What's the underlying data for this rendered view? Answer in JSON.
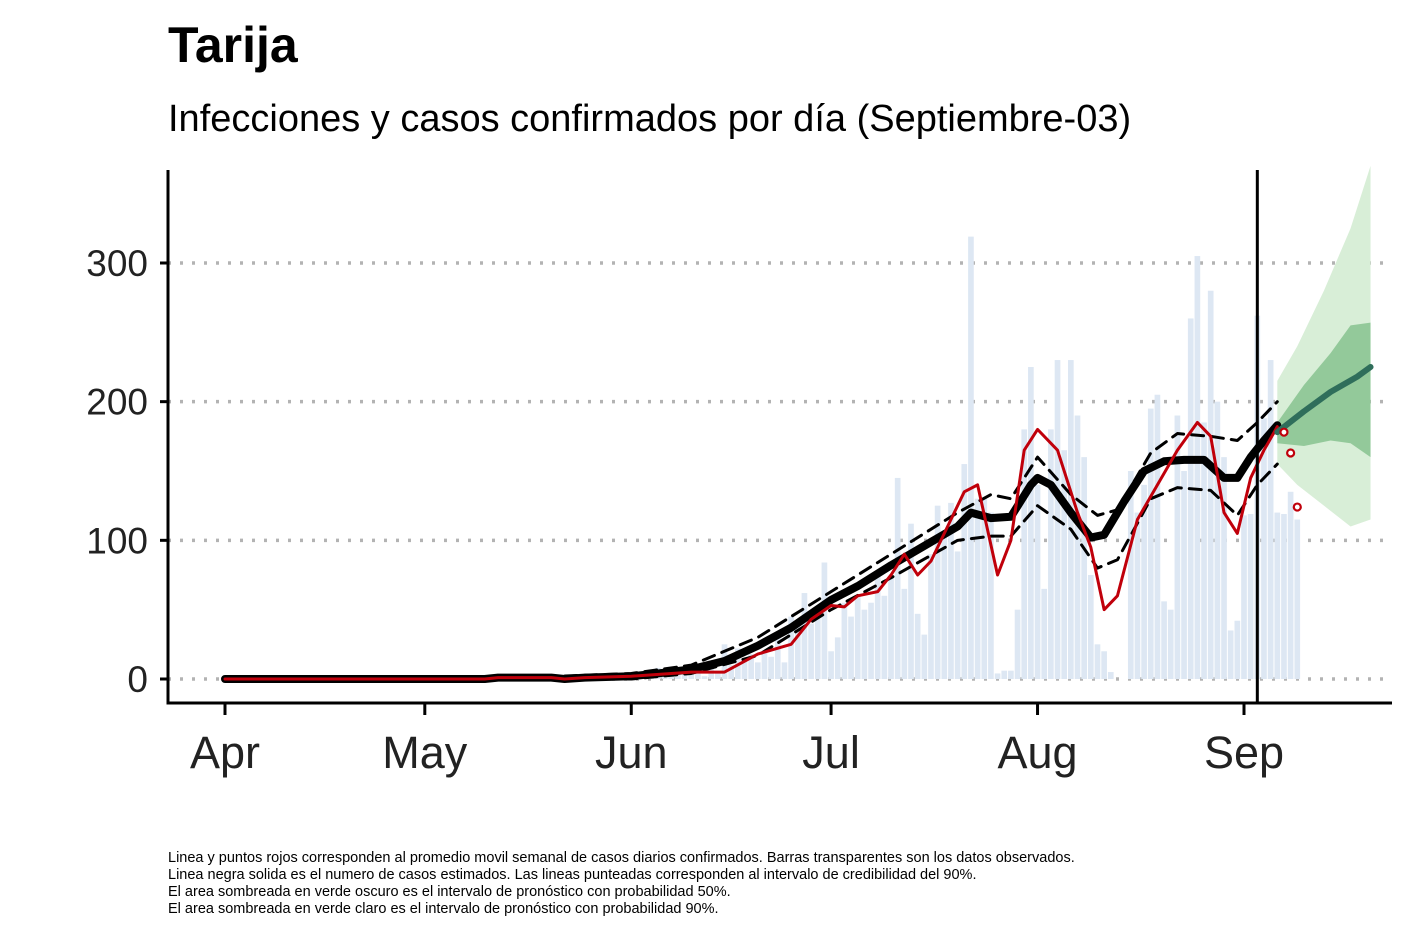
{
  "chart_data": {
    "type": "bar",
    "title": "Tarija",
    "subtitle": "Infecciones y casos confirmados por día (Septiembre-03)",
    "xlabel": "",
    "ylabel": "",
    "x_ticks": [
      "Apr",
      "May",
      "Jun",
      "Jul",
      "Aug",
      "Sep"
    ],
    "x_tick_dates": [
      "2020-04-01",
      "2020-05-01",
      "2020-06-01",
      "2020-07-01",
      "2020-08-01",
      "2020-09-01"
    ],
    "y_ticks": [
      0,
      100,
      200,
      300
    ],
    "ylim": [
      0,
      360
    ],
    "grid": "horizontal dotted",
    "cutoff_date": "2020-09-03",
    "colors": {
      "bars": "#dde7f3",
      "estimate": "#000000",
      "confirmed_avg": "#c0000b",
      "forecast_line": "#2f6e5b",
      "forecast_50": "#93c99a",
      "forecast_90": "#d8eed7",
      "grid": "#b3b3b3"
    },
    "observed_bars": [
      {
        "date": "2020-06-01",
        "value": 3
      },
      {
        "date": "2020-06-02",
        "value": 1
      },
      {
        "date": "2020-06-03",
        "value": 5
      },
      {
        "date": "2020-06-04",
        "value": 2
      },
      {
        "date": "2020-06-05",
        "value": 8
      },
      {
        "date": "2020-06-06",
        "value": 4
      },
      {
        "date": "2020-06-07",
        "value": 2
      },
      {
        "date": "2020-06-08",
        "value": 6
      },
      {
        "date": "2020-06-09",
        "value": 3
      },
      {
        "date": "2020-06-10",
        "value": 5
      },
      {
        "date": "2020-06-11",
        "value": 7
      },
      {
        "date": "2020-06-12",
        "value": 2
      },
      {
        "date": "2020-06-13",
        "value": 9
      },
      {
        "date": "2020-06-14",
        "value": 4
      },
      {
        "date": "2020-06-15",
        "value": 25
      },
      {
        "date": "2020-06-16",
        "value": 10
      },
      {
        "date": "2020-06-17",
        "value": 22
      },
      {
        "date": "2020-06-18",
        "value": 15
      },
      {
        "date": "2020-06-19",
        "value": 18
      },
      {
        "date": "2020-06-20",
        "value": 12
      },
      {
        "date": "2020-06-21",
        "value": 20
      },
      {
        "date": "2020-06-22",
        "value": 16
      },
      {
        "date": "2020-06-23",
        "value": 30
      },
      {
        "date": "2020-06-24",
        "value": 12
      },
      {
        "date": "2020-06-25",
        "value": 45
      },
      {
        "date": "2020-06-26",
        "value": 38
      },
      {
        "date": "2020-06-27",
        "value": 62
      },
      {
        "date": "2020-06-28",
        "value": 40
      },
      {
        "date": "2020-06-29",
        "value": 45
      },
      {
        "date": "2020-06-30",
        "value": 84
      },
      {
        "date": "2020-07-01",
        "value": 20
      },
      {
        "date": "2020-07-02",
        "value": 30
      },
      {
        "date": "2020-07-03",
        "value": 55
      },
      {
        "date": "2020-07-04",
        "value": 45
      },
      {
        "date": "2020-07-05",
        "value": 60
      },
      {
        "date": "2020-07-06",
        "value": 50
      },
      {
        "date": "2020-07-07",
        "value": 55
      },
      {
        "date": "2020-07-08",
        "value": 75
      },
      {
        "date": "2020-07-09",
        "value": 60
      },
      {
        "date": "2020-07-10",
        "value": 73
      },
      {
        "date": "2020-07-11",
        "value": 145
      },
      {
        "date": "2020-07-12",
        "value": 65
      },
      {
        "date": "2020-07-13",
        "value": 112
      },
      {
        "date": "2020-07-14",
        "value": 47
      },
      {
        "date": "2020-07-15",
        "value": 32
      },
      {
        "date": "2020-07-16",
        "value": 90
      },
      {
        "date": "2020-07-17",
        "value": 125
      },
      {
        "date": "2020-07-18",
        "value": 104
      },
      {
        "date": "2020-07-19",
        "value": 127
      },
      {
        "date": "2020-07-20",
        "value": 92
      },
      {
        "date": "2020-07-21",
        "value": 155
      },
      {
        "date": "2020-07-22",
        "value": 319
      },
      {
        "date": "2020-07-23",
        "value": 130
      },
      {
        "date": "2020-07-24",
        "value": 130
      },
      {
        "date": "2020-07-25",
        "value": 120
      },
      {
        "date": "2020-07-26",
        "value": 4
      },
      {
        "date": "2020-07-27",
        "value": 6
      },
      {
        "date": "2020-07-28",
        "value": 6
      },
      {
        "date": "2020-07-29",
        "value": 50
      },
      {
        "date": "2020-07-30",
        "value": 180
      },
      {
        "date": "2020-07-31",
        "value": 225
      },
      {
        "date": "2020-08-01",
        "value": 140
      },
      {
        "date": "2020-08-02",
        "value": 65
      },
      {
        "date": "2020-08-03",
        "value": 180
      },
      {
        "date": "2020-08-04",
        "value": 230
      },
      {
        "date": "2020-08-05",
        "value": 165
      },
      {
        "date": "2020-08-06",
        "value": 230
      },
      {
        "date": "2020-08-07",
        "value": 190
      },
      {
        "date": "2020-08-08",
        "value": 160
      },
      {
        "date": "2020-08-09",
        "value": 75
      },
      {
        "date": "2020-08-10",
        "value": 25
      },
      {
        "date": "2020-08-11",
        "value": 20
      },
      {
        "date": "2020-08-12",
        "value": 5
      },
      {
        "date": "2020-08-13",
        "value": 0
      },
      {
        "date": "2020-08-14",
        "value": 0
      },
      {
        "date": "2020-08-15",
        "value": 150
      },
      {
        "date": "2020-08-16",
        "value": 120
      },
      {
        "date": "2020-08-17",
        "value": 140
      },
      {
        "date": "2020-08-18",
        "value": 195
      },
      {
        "date": "2020-08-19",
        "value": 205
      },
      {
        "date": "2020-08-20",
        "value": 56
      },
      {
        "date": "2020-08-21",
        "value": 50
      },
      {
        "date": "2020-08-22",
        "value": 190
      },
      {
        "date": "2020-08-23",
        "value": 150
      },
      {
        "date": "2020-08-24",
        "value": 260
      },
      {
        "date": "2020-08-25",
        "value": 305
      },
      {
        "date": "2020-08-26",
        "value": 185
      },
      {
        "date": "2020-08-27",
        "value": 280
      },
      {
        "date": "2020-08-28",
        "value": 200
      },
      {
        "date": "2020-08-29",
        "value": 160
      },
      {
        "date": "2020-08-30",
        "value": 35
      },
      {
        "date": "2020-08-31",
        "value": 42
      },
      {
        "date": "2020-09-01",
        "value": 118
      },
      {
        "date": "2020-09-02",
        "value": 119
      },
      {
        "date": "2020-09-03",
        "value": 262
      },
      {
        "date": "2020-09-04",
        "value": 188
      },
      {
        "date": "2020-09-05",
        "value": 230
      },
      {
        "date": "2020-09-06",
        "value": 120
      },
      {
        "date": "2020-09-07",
        "value": 119
      },
      {
        "date": "2020-09-08",
        "value": 135
      },
      {
        "date": "2020-09-09",
        "value": 115
      }
    ],
    "estimated_infections": [
      {
        "date": "2020-04-01",
        "value": 0
      },
      {
        "date": "2020-05-01",
        "value": 0
      },
      {
        "date": "2020-05-10",
        "value": 0
      },
      {
        "date": "2020-05-12",
        "value": 1
      },
      {
        "date": "2020-05-20",
        "value": 1
      },
      {
        "date": "2020-05-22",
        "value": 0
      },
      {
        "date": "2020-05-25",
        "value": 1
      },
      {
        "date": "2020-06-01",
        "value": 2
      },
      {
        "date": "2020-06-05",
        "value": 4
      },
      {
        "date": "2020-06-10",
        "value": 7
      },
      {
        "date": "2020-06-15",
        "value": 13
      },
      {
        "date": "2020-06-20",
        "value": 24
      },
      {
        "date": "2020-06-25",
        "value": 37
      },
      {
        "date": "2020-07-01",
        "value": 57
      },
      {
        "date": "2020-07-05",
        "value": 67
      },
      {
        "date": "2020-07-10",
        "value": 82
      },
      {
        "date": "2020-07-15",
        "value": 96
      },
      {
        "date": "2020-07-20",
        "value": 110
      },
      {
        "date": "2020-07-22",
        "value": 120
      },
      {
        "date": "2020-07-25",
        "value": 116
      },
      {
        "date": "2020-07-28",
        "value": 117
      },
      {
        "date": "2020-07-31",
        "value": 140
      },
      {
        "date": "2020-08-01",
        "value": 145
      },
      {
        "date": "2020-08-03",
        "value": 140
      },
      {
        "date": "2020-08-06",
        "value": 120
      },
      {
        "date": "2020-08-09",
        "value": 102
      },
      {
        "date": "2020-08-11",
        "value": 104
      },
      {
        "date": "2020-08-14",
        "value": 128
      },
      {
        "date": "2020-08-17",
        "value": 150
      },
      {
        "date": "2020-08-20",
        "value": 157
      },
      {
        "date": "2020-08-23",
        "value": 158
      },
      {
        "date": "2020-08-26",
        "value": 158
      },
      {
        "date": "2020-08-29",
        "value": 145
      },
      {
        "date": "2020-08-31",
        "value": 145
      },
      {
        "date": "2020-09-02",
        "value": 160
      },
      {
        "date": "2020-09-04",
        "value": 172
      },
      {
        "date": "2020-09-06",
        "value": 183
      }
    ],
    "estimated_upper": [
      {
        "date": "2020-04-01",
        "value": 0
      },
      {
        "date": "2020-05-10",
        "value": 0
      },
      {
        "date": "2020-06-01",
        "value": 4
      },
      {
        "date": "2020-06-10",
        "value": 10
      },
      {
        "date": "2020-06-20",
        "value": 30
      },
      {
        "date": "2020-07-01",
        "value": 63
      },
      {
        "date": "2020-07-10",
        "value": 90
      },
      {
        "date": "2020-07-20",
        "value": 120
      },
      {
        "date": "2020-07-25",
        "value": 133
      },
      {
        "date": "2020-07-28",
        "value": 130
      },
      {
        "date": "2020-08-01",
        "value": 160
      },
      {
        "date": "2020-08-06",
        "value": 133
      },
      {
        "date": "2020-08-10",
        "value": 118
      },
      {
        "date": "2020-08-13",
        "value": 122
      },
      {
        "date": "2020-08-18",
        "value": 163
      },
      {
        "date": "2020-08-22",
        "value": 177
      },
      {
        "date": "2020-08-27",
        "value": 175
      },
      {
        "date": "2020-08-31",
        "value": 172
      },
      {
        "date": "2020-09-03",
        "value": 185
      },
      {
        "date": "2020-09-06",
        "value": 200
      }
    ],
    "estimated_lower": [
      {
        "date": "2020-04-01",
        "value": 0
      },
      {
        "date": "2020-05-10",
        "value": 0
      },
      {
        "date": "2020-06-01",
        "value": 0
      },
      {
        "date": "2020-06-10",
        "value": 4
      },
      {
        "date": "2020-06-20",
        "value": 17
      },
      {
        "date": "2020-07-01",
        "value": 50
      },
      {
        "date": "2020-07-10",
        "value": 73
      },
      {
        "date": "2020-07-20",
        "value": 100
      },
      {
        "date": "2020-07-25",
        "value": 103
      },
      {
        "date": "2020-07-28",
        "value": 103
      },
      {
        "date": "2020-08-01",
        "value": 125
      },
      {
        "date": "2020-08-06",
        "value": 108
      },
      {
        "date": "2020-08-10",
        "value": 80
      },
      {
        "date": "2020-08-13",
        "value": 86
      },
      {
        "date": "2020-08-18",
        "value": 130
      },
      {
        "date": "2020-08-22",
        "value": 138
      },
      {
        "date": "2020-08-27",
        "value": 136
      },
      {
        "date": "2020-08-31",
        "value": 118
      },
      {
        "date": "2020-09-03",
        "value": 140
      },
      {
        "date": "2020-09-06",
        "value": 155
      }
    ],
    "confirmed_weekly_avg": [
      {
        "date": "2020-04-01",
        "value": 0
      },
      {
        "date": "2020-05-10",
        "value": 0
      },
      {
        "date": "2020-05-12",
        "value": 1
      },
      {
        "date": "2020-05-20",
        "value": 1
      },
      {
        "date": "2020-05-22",
        "value": 0
      },
      {
        "date": "2020-05-25",
        "value": 1
      },
      {
        "date": "2020-06-01",
        "value": 2
      },
      {
        "date": "2020-06-10",
        "value": 5
      },
      {
        "date": "2020-06-15",
        "value": 5
      },
      {
        "date": "2020-06-20",
        "value": 18
      },
      {
        "date": "2020-06-25",
        "value": 25
      },
      {
        "date": "2020-06-28",
        "value": 43
      },
      {
        "date": "2020-07-01",
        "value": 53
      },
      {
        "date": "2020-07-03",
        "value": 52
      },
      {
        "date": "2020-07-05",
        "value": 60
      },
      {
        "date": "2020-07-08",
        "value": 63
      },
      {
        "date": "2020-07-10",
        "value": 75
      },
      {
        "date": "2020-07-12",
        "value": 90
      },
      {
        "date": "2020-07-14",
        "value": 75
      },
      {
        "date": "2020-07-16",
        "value": 85
      },
      {
        "date": "2020-07-19",
        "value": 115
      },
      {
        "date": "2020-07-21",
        "value": 135
      },
      {
        "date": "2020-07-23",
        "value": 140
      },
      {
        "date": "2020-07-26",
        "value": 75
      },
      {
        "date": "2020-07-28",
        "value": 100
      },
      {
        "date": "2020-07-30",
        "value": 165
      },
      {
        "date": "2020-08-01",
        "value": 180
      },
      {
        "date": "2020-08-04",
        "value": 165
      },
      {
        "date": "2020-08-07",
        "value": 120
      },
      {
        "date": "2020-08-09",
        "value": 95
      },
      {
        "date": "2020-08-11",
        "value": 50
      },
      {
        "date": "2020-08-13",
        "value": 60
      },
      {
        "date": "2020-08-16",
        "value": 115
      },
      {
        "date": "2020-08-19",
        "value": 140
      },
      {
        "date": "2020-08-22",
        "value": 165
      },
      {
        "date": "2020-08-25",
        "value": 185
      },
      {
        "date": "2020-08-27",
        "value": 175
      },
      {
        "date": "2020-08-29",
        "value": 120
      },
      {
        "date": "2020-08-31",
        "value": 105
      },
      {
        "date": "2020-09-02",
        "value": 145
      },
      {
        "date": "2020-09-04",
        "value": 165
      },
      {
        "date": "2020-09-06",
        "value": 182
      }
    ],
    "confirmed_points": [
      {
        "date": "2020-09-07",
        "value": 178
      },
      {
        "date": "2020-09-08",
        "value": 163
      },
      {
        "date": "2020-09-09",
        "value": 124
      }
    ],
    "forecast_median": [
      {
        "date": "2020-09-06",
        "value": 178
      },
      {
        "date": "2020-09-10",
        "value": 193
      },
      {
        "date": "2020-09-14",
        "value": 207
      },
      {
        "date": "2020-09-18",
        "value": 218
      },
      {
        "date": "2020-09-20",
        "value": 225
      }
    ],
    "forecast_50_upper": [
      {
        "date": "2020-09-06",
        "value": 185
      },
      {
        "date": "2020-09-10",
        "value": 212
      },
      {
        "date": "2020-09-14",
        "value": 235
      },
      {
        "date": "2020-09-17",
        "value": 255
      },
      {
        "date": "2020-09-20",
        "value": 257
      }
    ],
    "forecast_50_lower": [
      {
        "date": "2020-09-06",
        "value": 170
      },
      {
        "date": "2020-09-10",
        "value": 168
      },
      {
        "date": "2020-09-14",
        "value": 172
      },
      {
        "date": "2020-09-17",
        "value": 170
      },
      {
        "date": "2020-09-20",
        "value": 160
      }
    ],
    "forecast_90_upper": [
      {
        "date": "2020-09-06",
        "value": 215
      },
      {
        "date": "2020-09-09",
        "value": 240
      },
      {
        "date": "2020-09-13",
        "value": 280
      },
      {
        "date": "2020-09-17",
        "value": 325
      },
      {
        "date": "2020-09-20",
        "value": 370
      }
    ],
    "forecast_90_lower": [
      {
        "date": "2020-09-06",
        "value": 155
      },
      {
        "date": "2020-09-09",
        "value": 140
      },
      {
        "date": "2020-09-13",
        "value": 125
      },
      {
        "date": "2020-09-17",
        "value": 110
      },
      {
        "date": "2020-09-20",
        "value": 115
      }
    ]
  },
  "caption_lines": [
    "Linea y puntos rojos corresponden al promedio movil semanal de casos diarios confirmados. Barras transparentes son los datos observados.",
    "Linea negra solida es el numero de casos estimados. Las lineas punteadas corresponden al intervalo de credibilidad del 90%.",
    "El area sombreada en verde oscuro es el intervalo de pronóstico con probabilidad 50%.",
    "El area sombreada en verde claro es el intervalo de pronóstico con probabilidad 90%."
  ]
}
